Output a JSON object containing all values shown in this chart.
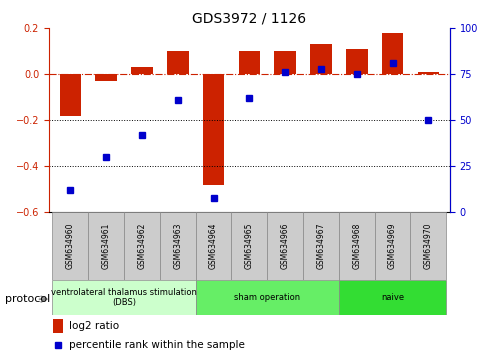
{
  "title": "GDS3972 / 1126",
  "samples": [
    "GSM634960",
    "GSM634961",
    "GSM634962",
    "GSM634963",
    "GSM634964",
    "GSM634965",
    "GSM634966",
    "GSM634967",
    "GSM634968",
    "GSM634969",
    "GSM634970"
  ],
  "log2_ratio": [
    -0.18,
    -0.03,
    0.03,
    0.1,
    -0.48,
    0.1,
    0.1,
    0.13,
    0.11,
    0.18,
    0.01
  ],
  "percentile_rank": [
    12,
    30,
    42,
    61,
    8,
    62,
    76,
    78,
    75,
    81,
    50
  ],
  "bar_color": "#cc2200",
  "dot_color": "#0000cc",
  "ylim_left": [
    -0.6,
    0.2
  ],
  "ylim_right": [
    0,
    100
  ],
  "yticks_left": [
    -0.6,
    -0.4,
    -0.2,
    0.0,
    0.2
  ],
  "yticks_right": [
    0,
    25,
    50,
    75,
    100
  ],
  "dotted_lines": [
    -0.2,
    -0.4
  ],
  "protocol_groups": [
    {
      "label": "ventrolateral thalamus stimulation\n(DBS)",
      "start": 0,
      "end": 3,
      "color": "#ccffcc"
    },
    {
      "label": "sham operation",
      "start": 4,
      "end": 7,
      "color": "#66ee66"
    },
    {
      "label": "naive",
      "start": 8,
      "end": 10,
      "color": "#33dd33"
    }
  ],
  "legend_bar_label": "log2 ratio",
  "legend_dot_label": "percentile rank within the sample",
  "bar_width": 0.6,
  "protocol_label": "protocol"
}
